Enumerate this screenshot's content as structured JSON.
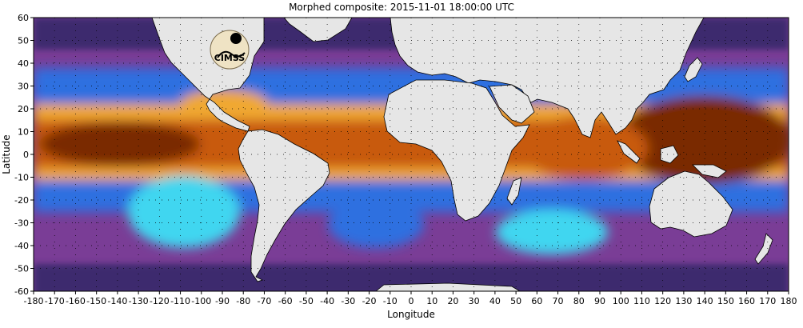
{
  "title": "Morphed composite: 2015-11-01 18:00:00 UTC",
  "xlabel": "Longitude",
  "ylabel": "Latitude",
  "logo_text": "CIMSS",
  "map": {
    "type": "geographic map",
    "projection": "equirectangular",
    "lon_range": [
      -180,
      180
    ],
    "lat_range": [
      -60,
      60
    ],
    "x_ticks": [
      "-180",
      "-170",
      "-160",
      "-150",
      "-140",
      "-130",
      "-120",
      "-110",
      "-100",
      "-90",
      "-80",
      "-70",
      "-60",
      "-50",
      "-40",
      "-30",
      "-20",
      "-10",
      "0",
      "10",
      "20",
      "30",
      "40",
      "50",
      "60",
      "70",
      "80",
      "90",
      "100",
      "110",
      "120",
      "130",
      "140",
      "150",
      "160",
      "170",
      "180"
    ],
    "y_ticks": [
      "60",
      "50",
      "40",
      "30",
      "20",
      "10",
      "0",
      "-10",
      "-20",
      "-30",
      "-40",
      "-50",
      "-60"
    ],
    "grid": "dotted",
    "colors": {
      "land": "#e6e6e6",
      "coast": "#000000",
      "dry": "#3d2a6e",
      "low": "#7a3d96",
      "mid_low": "#2f6fe0",
      "mid": "#3fd6f0",
      "mid_high": "#8ef07a",
      "high": "#f0a830",
      "very_high": "#c85a10",
      "max": "#7a2a05"
    }
  }
}
